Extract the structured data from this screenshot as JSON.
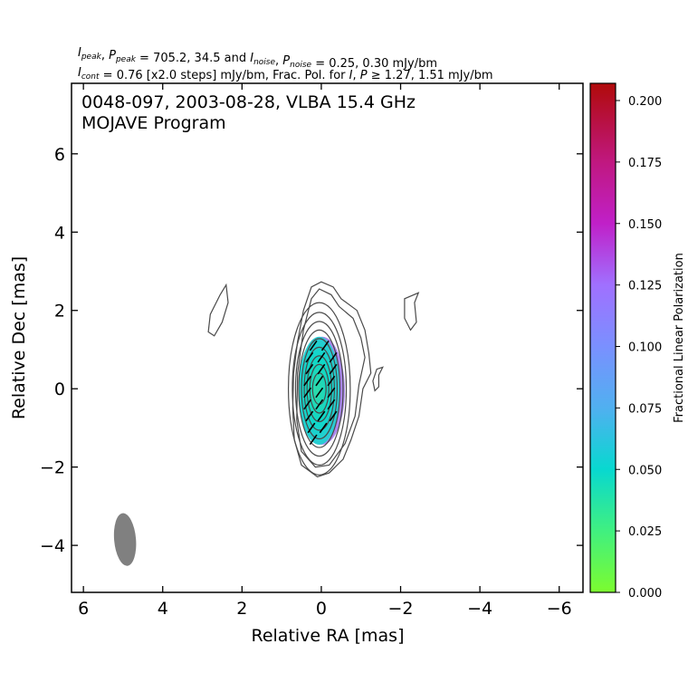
{
  "header": {
    "line1": [
      {
        "t": "I",
        "s": "peak",
        "it": true
      },
      {
        "t": ", "
      },
      {
        "t": "P",
        "s": "peak",
        "it": true
      },
      {
        "t": " = 705.2, 34.5 and "
      },
      {
        "t": "I",
        "s": "noise",
        "it": true
      },
      {
        "t": ", "
      },
      {
        "t": "P",
        "s": "noise",
        "it": true
      },
      {
        "t": " = 0.25, 0.30 mJy/bm"
      }
    ],
    "line2": [
      {
        "t": "I",
        "s": "cont",
        "it": true
      },
      {
        "t": " = 0.76 [x2.0 steps] mJy/bm, Frac. Pol. for "
      },
      {
        "t": "I",
        "it": true
      },
      {
        "t": ", "
      },
      {
        "t": "P",
        "it": true
      },
      {
        "t": " ≥ 1.27, 1.51 mJy/bm"
      }
    ]
  },
  "chart_data": {
    "type": "contour",
    "annotation": [
      "0048-097, 2003-08-28, VLBA 15.4 GHz",
      "MOJAVE Program"
    ],
    "xlabel": "Relative RA [mas]",
    "ylabel": "Relative Dec [mas]",
    "xlim": [
      6.3,
      -6.6
    ],
    "ylim": [
      -5.2,
      7.8
    ],
    "xticks": [
      6,
      4,
      2,
      0,
      -2,
      -4,
      -6
    ],
    "yticks": [
      -4,
      -2,
      0,
      2,
      4,
      6
    ],
    "beam": {
      "x": 4.95,
      "y": -3.85,
      "major_mas": 1.35,
      "minor_mas": 0.55,
      "pa_deg": -5,
      "color": "#808080"
    },
    "contour_color": "#4a4a4a",
    "core_contours": [
      {
        "x": 0.05,
        "y": 0.0,
        "rx": 0.78,
        "ry": 2.2
      },
      {
        "x": 0.05,
        "y": 0.0,
        "rx": 0.68,
        "ry": 1.95
      },
      {
        "x": 0.05,
        "y": 0.0,
        "rx": 0.6,
        "ry": 1.72
      },
      {
        "x": 0.05,
        "y": 0.0,
        "rx": 0.52,
        "ry": 1.5
      },
      {
        "x": 0.05,
        "y": 0.0,
        "rx": 0.45,
        "ry": 1.28
      },
      {
        "x": 0.05,
        "y": 0.0,
        "rx": 0.38,
        "ry": 1.06
      },
      {
        "x": 0.05,
        "y": 0.0,
        "rx": 0.31,
        "ry": 0.84
      },
      {
        "x": 0.05,
        "y": 0.0,
        "rx": 0.24,
        "ry": 0.62
      },
      {
        "x": 0.05,
        "y": 0.0,
        "rx": 0.17,
        "ry": 0.4
      }
    ],
    "outer_contours": [
      [
        [
          0.0,
          2.73
        ],
        [
          -0.3,
          2.6
        ],
        [
          -0.5,
          2.3
        ],
        [
          -0.9,
          2.0
        ],
        [
          -1.1,
          1.5
        ],
        [
          -1.2,
          0.9
        ],
        [
          -1.25,
          0.4
        ],
        [
          -1.05,
          0.0
        ],
        [
          -0.95,
          -0.7
        ],
        [
          -0.75,
          -1.3
        ],
        [
          -0.55,
          -1.8
        ],
        [
          -0.2,
          -2.15
        ],
        [
          0.1,
          -2.25
        ],
        [
          0.5,
          -1.95
        ],
        [
          0.68,
          -1.3
        ],
        [
          0.72,
          -0.5
        ],
        [
          0.7,
          0.4
        ],
        [
          0.6,
          1.2
        ],
        [
          0.45,
          2.0
        ],
        [
          0.25,
          2.6
        ]
      ],
      [
        [
          0.05,
          2.55
        ],
        [
          -0.25,
          2.4
        ],
        [
          -0.45,
          2.1
        ],
        [
          -0.8,
          1.8
        ],
        [
          -1.0,
          1.3
        ],
        [
          -1.1,
          0.8
        ],
        [
          -0.95,
          0.1
        ],
        [
          -0.85,
          -0.7
        ],
        [
          -0.6,
          -1.4
        ],
        [
          -0.2,
          -1.95
        ],
        [
          0.15,
          -2.0
        ],
        [
          0.5,
          -1.6
        ],
        [
          0.62,
          -0.8
        ],
        [
          0.6,
          0.4
        ],
        [
          0.45,
          1.5
        ],
        [
          0.25,
          2.3
        ]
      ]
    ],
    "islands": [
      [
        [
          2.4,
          2.65
        ],
        [
          2.35,
          2.2
        ],
        [
          2.5,
          1.7
        ],
        [
          2.7,
          1.35
        ],
        [
          2.85,
          1.45
        ],
        [
          2.8,
          1.9
        ],
        [
          2.55,
          2.4
        ]
      ],
      [
        [
          -2.45,
          2.45
        ],
        [
          -2.35,
          2.2
        ],
        [
          -2.4,
          1.7
        ],
        [
          -2.25,
          1.5
        ],
        [
          -2.1,
          1.8
        ],
        [
          -2.1,
          2.3
        ]
      ],
      [
        [
          -1.55,
          0.55
        ],
        [
          -1.45,
          0.35
        ],
        [
          -1.45,
          0.05
        ],
        [
          -1.35,
          -0.05
        ],
        [
          -1.3,
          0.2
        ],
        [
          -1.4,
          0.5
        ]
      ]
    ],
    "fracpol_region": {
      "x": 0.05,
      "y": -0.05,
      "rx": 0.53,
      "ry": 1.38,
      "colors": [
        "#2fd9a8",
        "#0ed8c8",
        "#38c6d8"
      ],
      "edge_color": "#8f5fe8"
    },
    "evpa_ticks": {
      "angle_deg": 55,
      "length_mas": 0.3,
      "positions": [
        [
          0.2,
          1.1
        ],
        [
          -0.1,
          1.1
        ],
        [
          0.3,
          0.8
        ],
        [
          0.0,
          0.8
        ],
        [
          -0.3,
          0.8
        ],
        [
          0.3,
          0.5
        ],
        [
          0.0,
          0.5
        ],
        [
          -0.3,
          0.5
        ],
        [
          0.35,
          0.2
        ],
        [
          0.05,
          0.2
        ],
        [
          -0.25,
          0.2
        ],
        [
          0.35,
          -0.1
        ],
        [
          0.05,
          -0.1
        ],
        [
          -0.25,
          -0.1
        ],
        [
          0.35,
          -0.4
        ],
        [
          0.05,
          -0.4
        ],
        [
          -0.25,
          -0.4
        ],
        [
          0.3,
          -0.7
        ],
        [
          0.0,
          -0.7
        ],
        [
          -0.3,
          -0.7
        ],
        [
          0.25,
          -1.0
        ],
        [
          -0.05,
          -1.0
        ],
        [
          0.2,
          -1.3
        ]
      ]
    },
    "colorbar": {
      "label": "Fractional Linear Polarization",
      "min": 0.0,
      "max": 0.207,
      "ticks": [
        "0.000",
        "0.025",
        "0.050",
        "0.075",
        "0.100",
        "0.125",
        "0.150",
        "0.175",
        "0.200"
      ],
      "tick_values": [
        0.0,
        0.025,
        0.05,
        0.075,
        0.1,
        0.125,
        0.15,
        0.175,
        0.2
      ],
      "stops": [
        {
          "v": 0.0,
          "c": "#7cfc2f"
        },
        {
          "v": 0.025,
          "c": "#40f080"
        },
        {
          "v": 0.05,
          "c": "#08d8d0"
        },
        {
          "v": 0.075,
          "c": "#50b0f0"
        },
        {
          "v": 0.1,
          "c": "#7a90ff"
        },
        {
          "v": 0.125,
          "c": "#a070ff"
        },
        {
          "v": 0.15,
          "c": "#c020c8"
        },
        {
          "v": 0.175,
          "c": "#c01880"
        },
        {
          "v": 0.207,
          "c": "#b00a0a"
        }
      ]
    }
  }
}
